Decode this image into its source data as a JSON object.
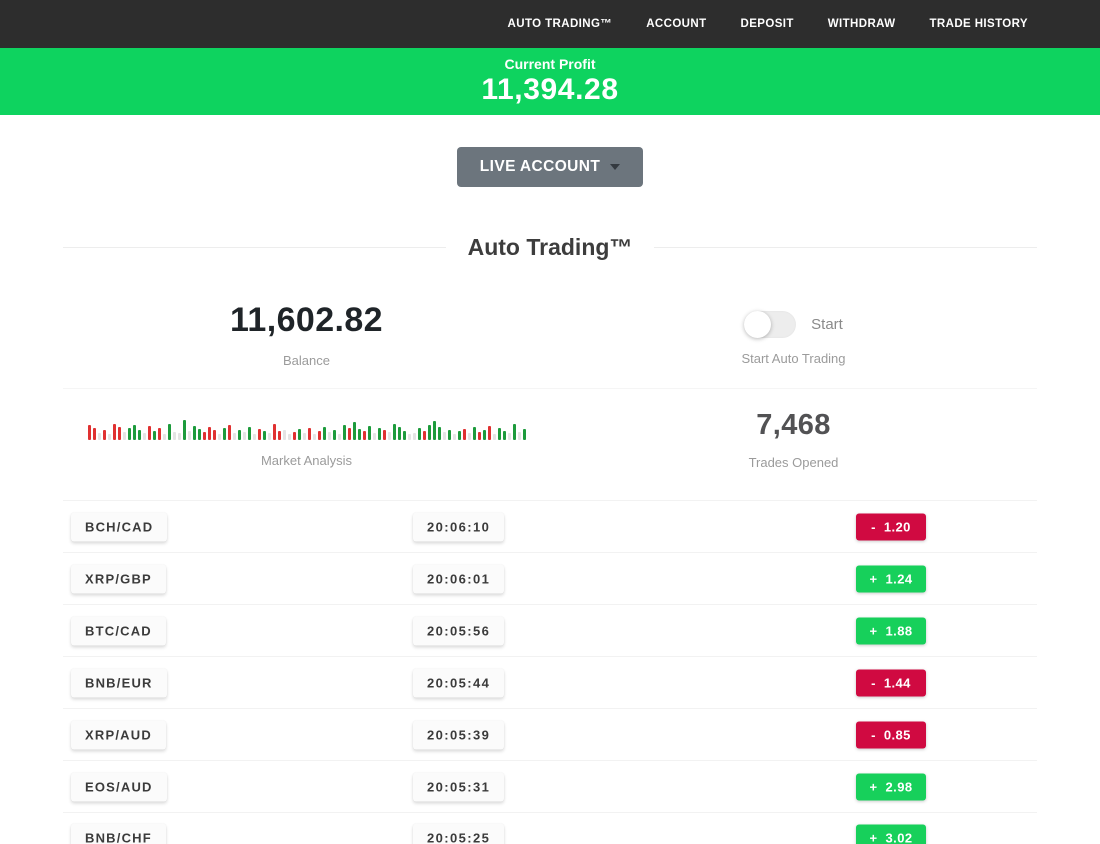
{
  "nav": {
    "items": [
      {
        "label": "AUTO TRADING™"
      },
      {
        "label": "ACCOUNT"
      },
      {
        "label": "DEPOSIT"
      },
      {
        "label": "WITHDRAW"
      },
      {
        "label": "TRADE HISTORY"
      }
    ]
  },
  "banner": {
    "label": "Current Profit",
    "value": "11,394.28"
  },
  "account_selector": {
    "label": "LIVE ACCOUNT"
  },
  "section": {
    "title": "Auto Trading™"
  },
  "stats": {
    "balance": {
      "value": "11,602.82",
      "label": "Balance"
    },
    "auto_trading": {
      "toggle_label": "Start",
      "label": "Start Auto Trading",
      "toggle_state": "off"
    },
    "market_analysis": {
      "label": "Market Analysis"
    },
    "trades_opened": {
      "value": "7,468",
      "label": "Trades Opened"
    }
  },
  "colors": {
    "gain": "#17d05b",
    "loss": "#d00a41",
    "banner_green": "#0ed35f",
    "nav_bg": "#2d2d2d",
    "bar_red": "#e03131",
    "bar_green": "#1d9b3c",
    "bar_gray": "#e4e4e4"
  },
  "trades": [
    {
      "pair": "BCH/CAD",
      "time": "20:06:10",
      "sign": "-",
      "value": "1.20",
      "direction": "loss"
    },
    {
      "pair": "XRP/GBP",
      "time": "20:06:01",
      "sign": "+",
      "value": "1.24",
      "direction": "gain"
    },
    {
      "pair": "BTC/CAD",
      "time": "20:05:56",
      "sign": "+",
      "value": "1.88",
      "direction": "gain"
    },
    {
      "pair": "BNB/EUR",
      "time": "20:05:44",
      "sign": "-",
      "value": "1.44",
      "direction": "loss"
    },
    {
      "pair": "XRP/AUD",
      "time": "20:05:39",
      "sign": "-",
      "value": "0.85",
      "direction": "loss"
    },
    {
      "pair": "EOS/AUD",
      "time": "20:05:31",
      "sign": "+",
      "value": "2.98",
      "direction": "gain"
    },
    {
      "pair": "BNB/CHF",
      "time": "20:05:25",
      "sign": "+",
      "value": "3.02",
      "direction": "gain"
    }
  ],
  "chart_data": {
    "type": "bar",
    "title": "Market Analysis",
    "note": "decorative candlestick-style strip; r=red g=green n=neutral, value=bar height px",
    "bars": [
      [
        "r",
        15
      ],
      [
        "r",
        12
      ],
      [
        "n",
        7
      ],
      [
        "r",
        10
      ],
      [
        "n",
        6
      ],
      [
        "r",
        16
      ],
      [
        "r",
        13
      ],
      [
        "n",
        8
      ],
      [
        "g",
        12
      ],
      [
        "g",
        15
      ],
      [
        "g",
        10
      ],
      [
        "n",
        7
      ],
      [
        "r",
        14
      ],
      [
        "g",
        9
      ],
      [
        "r",
        12
      ],
      [
        "n",
        6
      ],
      [
        "g",
        16
      ],
      [
        "n",
        8
      ],
      [
        "n",
        7
      ],
      [
        "g",
        20
      ],
      [
        "n",
        9
      ],
      [
        "g",
        14
      ],
      [
        "g",
        11
      ],
      [
        "r",
        8
      ],
      [
        "r",
        13
      ],
      [
        "r",
        10
      ],
      [
        "n",
        6
      ],
      [
        "g",
        12
      ],
      [
        "r",
        15
      ],
      [
        "n",
        7
      ],
      [
        "g",
        10
      ],
      [
        "n",
        8
      ],
      [
        "g",
        13
      ],
      [
        "n",
        6
      ],
      [
        "r",
        11
      ],
      [
        "g",
        9
      ],
      [
        "n",
        7
      ],
      [
        "r",
        16
      ],
      [
        "r",
        9
      ],
      [
        "n",
        10
      ],
      [
        "n",
        6
      ],
      [
        "r",
        8
      ],
      [
        "g",
        11
      ],
      [
        "n",
        7
      ],
      [
        "r",
        12
      ],
      [
        "n",
        6
      ],
      [
        "r",
        9
      ],
      [
        "g",
        13
      ],
      [
        "n",
        8
      ],
      [
        "g",
        10
      ],
      [
        "n",
        6
      ],
      [
        "g",
        15
      ],
      [
        "r",
        12
      ],
      [
        "g",
        18
      ],
      [
        "g",
        11
      ],
      [
        "r",
        9
      ],
      [
        "g",
        14
      ],
      [
        "n",
        7
      ],
      [
        "g",
        12
      ],
      [
        "r",
        10
      ],
      [
        "n",
        8
      ],
      [
        "g",
        16
      ],
      [
        "g",
        13
      ],
      [
        "g",
        9
      ],
      [
        "n",
        6
      ],
      [
        "n",
        7
      ],
      [
        "g",
        12
      ],
      [
        "r",
        9
      ],
      [
        "g",
        15
      ],
      [
        "g",
        19
      ],
      [
        "g",
        13
      ],
      [
        "n",
        8
      ],
      [
        "g",
        10
      ],
      [
        "n",
        6
      ],
      [
        "g",
        9
      ],
      [
        "r",
        11
      ],
      [
        "n",
        7
      ],
      [
        "g",
        13
      ],
      [
        "r",
        8
      ],
      [
        "g",
        10
      ],
      [
        "r",
        14
      ],
      [
        "n",
        6
      ],
      [
        "g",
        12
      ],
      [
        "g",
        9
      ],
      [
        "n",
        7
      ],
      [
        "g",
        16
      ],
      [
        "n",
        8
      ],
      [
        "g",
        11
      ]
    ]
  }
}
